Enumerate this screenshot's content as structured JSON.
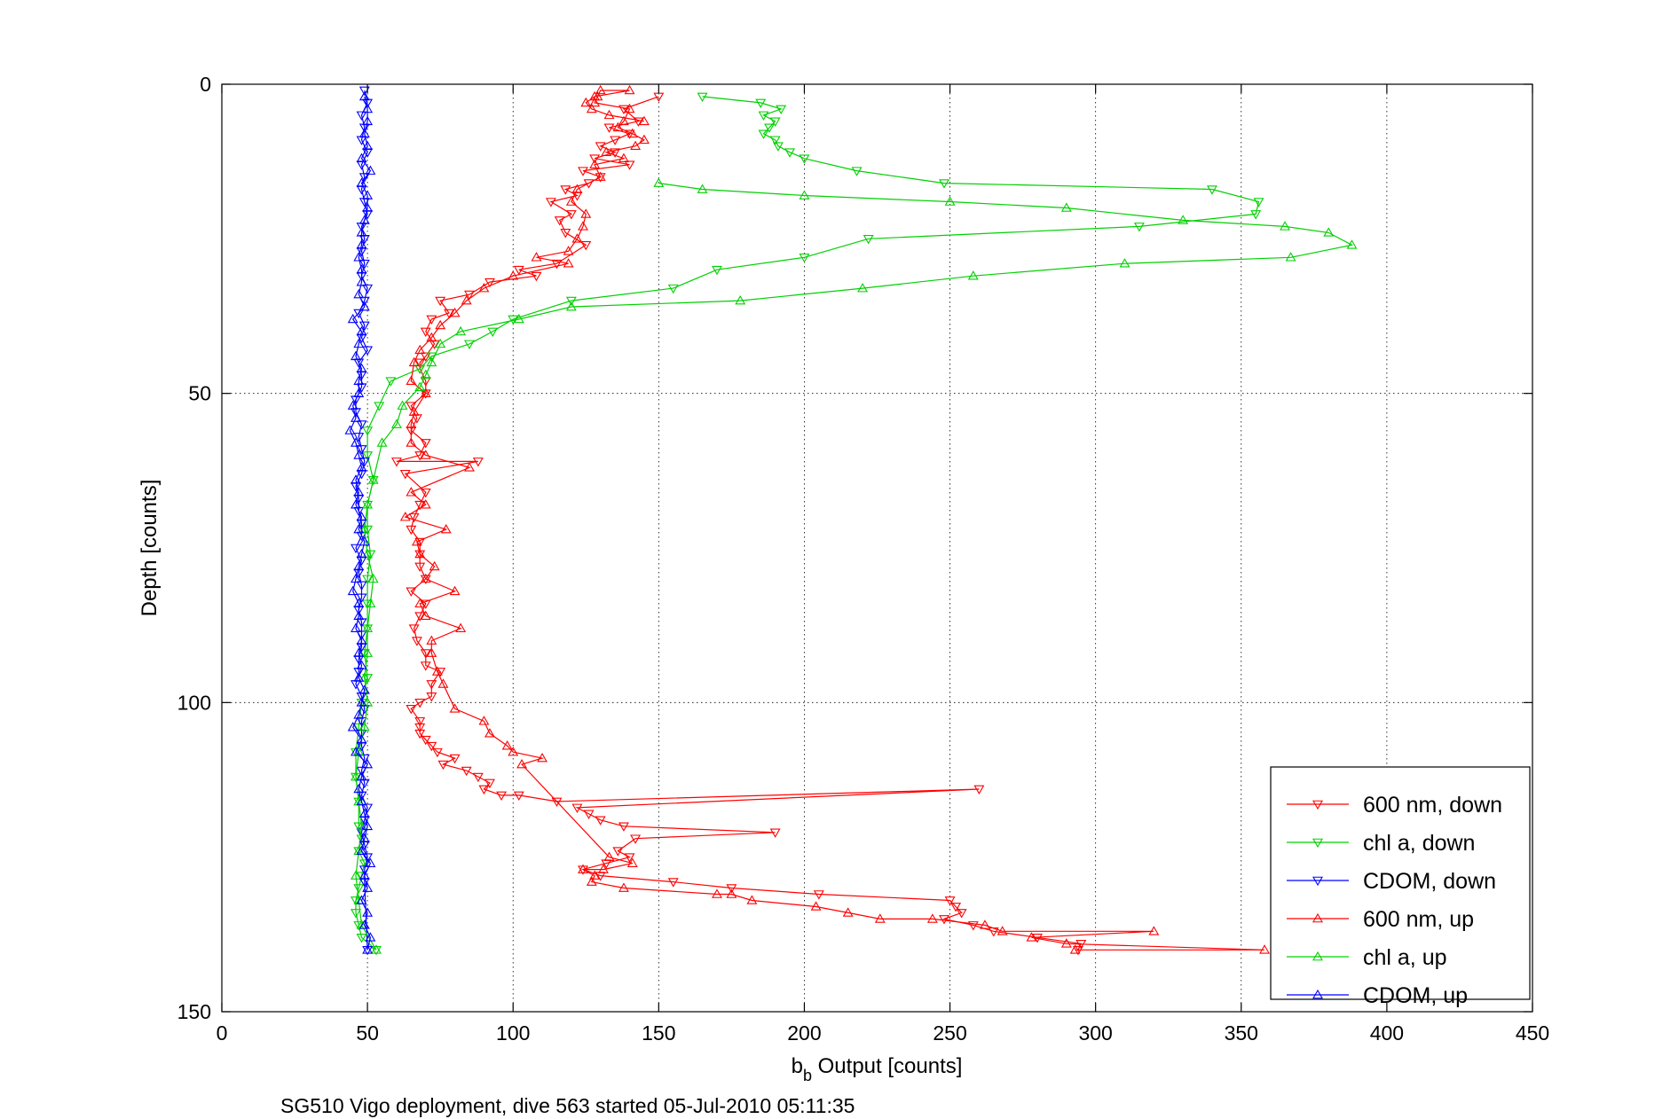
{
  "chart_data": {
    "type": "line",
    "title": "",
    "xlabel": {
      "main": "b",
      "sub": "b",
      "rest": " Output [counts]"
    },
    "ylabel": "Depth [counts]",
    "caption": "SG510 Vigo deployment, dive 563 started 05-Jul-2010 05:11:35",
    "xlim": [
      0,
      450
    ],
    "ylim": [
      0,
      150
    ],
    "y_reversed": true,
    "grid": true,
    "legend_position": "bottom-right",
    "xticks": [
      0,
      50,
      100,
      150,
      200,
      250,
      300,
      350,
      400,
      450
    ],
    "yticks": [
      0,
      50,
      100,
      150
    ],
    "xtick_labels": [
      "0",
      "50",
      "100",
      "150",
      "200",
      "250",
      "300",
      "350",
      "400",
      "450"
    ],
    "ytick_labels": [
      "0",
      "50",
      "100",
      "150"
    ],
    "series": [
      {
        "name": "600 nm, down",
        "color": "#ff0000",
        "marker": "triangle-down",
        "x": [
          150,
          138,
          143,
          133,
          140,
          135,
          130,
          135,
          128,
          140,
          124,
          130,
          126,
          118,
          122,
          113,
          120,
          116,
          118,
          125,
          115,
          102,
          108,
          92,
          85,
          75,
          78,
          72,
          70,
          73,
          70,
          68,
          68,
          70,
          70,
          65,
          67,
          65,
          70,
          68,
          60,
          88,
          63,
          70,
          68,
          66,
          65,
          68,
          68,
          68,
          70,
          65,
          70,
          68,
          66,
          67,
          70,
          70,
          75,
          72,
          72,
          68,
          65,
          68,
          68,
          68,
          70,
          72,
          74,
          80,
          76,
          84,
          88,
          92,
          90,
          96,
          102,
          115,
          260,
          122,
          126,
          130,
          138,
          190,
          142,
          136,
          140,
          132,
          124,
          130,
          155,
          175,
          205,
          250,
          252,
          254,
          248,
          258,
          265,
          280,
          295,
          294
        ],
        "y": [
          2,
          4,
          6,
          7,
          8,
          9,
          10,
          11,
          12,
          13,
          14,
          15,
          16,
          17,
          18,
          19,
          21,
          22,
          24,
          26,
          29,
          30,
          31,
          32,
          34,
          35,
          37,
          38,
          40,
          42,
          44,
          45,
          46,
          48,
          50,
          52,
          54,
          56,
          58,
          60,
          61,
          61,
          63,
          66,
          68,
          70,
          72,
          74,
          76,
          78,
          80,
          82,
          84,
          86,
          88,
          90,
          92,
          94,
          95,
          97,
          99,
          100,
          101,
          103,
          104,
          105,
          106,
          107,
          108,
          109,
          110,
          111,
          112,
          113,
          114,
          115,
          115,
          116,
          114,
          117,
          118,
          119,
          120,
          121,
          122,
          124,
          125,
          126,
          127,
          128,
          129,
          130,
          131,
          132,
          133,
          134,
          135,
          136,
          137,
          138,
          139,
          140
        ]
      },
      {
        "name": "chl a, down",
        "color": "#00d000",
        "marker": "triangle-down",
        "x": [
          165,
          185,
          192,
          186,
          190,
          188,
          186,
          190,
          191,
          195,
          200,
          218,
          248,
          340,
          356,
          355,
          315,
          222,
          200,
          170,
          155,
          120,
          100,
          93,
          85,
          72,
          68,
          58,
          54,
          50,
          50,
          52,
          50,
          50,
          51,
          50,
          50,
          50,
          49,
          50,
          48,
          47,
          46,
          46,
          47,
          47,
          48,
          47,
          49,
          48,
          47,
          46,
          46,
          47,
          48,
          53
        ],
        "y": [
          2,
          3,
          4,
          5,
          6,
          7,
          8,
          9,
          10,
          11,
          12,
          14,
          16,
          17,
          19,
          21,
          23,
          25,
          28,
          30,
          33,
          35,
          38,
          40,
          42,
          44,
          46,
          48,
          52,
          56,
          60,
          64,
          68,
          72,
          76,
          80,
          84,
          88,
          92,
          96,
          100,
          104,
          108,
          112,
          116,
          120,
          122,
          124,
          126,
          128,
          130,
          132,
          134,
          136,
          138,
          140
        ]
      },
      {
        "name": "CDOM, down",
        "color": "#0000ff",
        "marker": "triangle-down",
        "x": [
          49,
          50,
          48,
          49,
          48,
          50,
          48,
          49,
          48,
          49,
          50,
          48,
          49,
          48,
          49,
          48,
          50,
          49,
          47,
          49,
          48,
          50,
          47,
          48,
          48,
          46,
          46,
          48,
          47,
          48,
          49,
          48,
          46,
          47,
          47,
          48,
          48,
          46,
          48,
          47,
          48,
          48,
          47,
          48,
          48,
          48,
          47,
          47,
          46,
          48,
          49,
          48,
          48,
          48,
          49,
          48,
          49,
          48,
          50,
          49,
          48,
          49,
          50,
          49,
          49,
          50
        ],
        "y": [
          1,
          3,
          5,
          7,
          9,
          11,
          13,
          15,
          17,
          19,
          21,
          23,
          25,
          27,
          29,
          31,
          33,
          35,
          37,
          39,
          41,
          43,
          45,
          47,
          49,
          51,
          53,
          55,
          57,
          59,
          61,
          63,
          65,
          67,
          69,
          71,
          73,
          75,
          77,
          79,
          81,
          83,
          85,
          87,
          89,
          91,
          93,
          95,
          97,
          99,
          101,
          103,
          105,
          107,
          109,
          111,
          113,
          115,
          117,
          119,
          121,
          123,
          125,
          127,
          129,
          140
        ]
      },
      {
        "name": "600 nm, up",
        "color": "#ff0000",
        "marker": "triangle-up",
        "x": [
          293,
          358,
          290,
          278,
          320,
          268,
          262,
          244,
          226,
          215,
          204,
          182,
          175,
          170,
          138,
          127,
          128,
          124,
          131,
          141,
          133,
          103,
          110,
          100,
          98,
          92,
          90,
          80,
          76,
          74,
          72,
          72,
          82,
          70,
          68,
          80,
          70,
          73,
          68,
          67,
          77,
          63,
          70,
          65,
          85,
          70,
          65,
          65,
          66,
          70,
          65,
          66,
          68,
          72,
          75,
          80,
          84,
          90,
          100,
          119,
          108,
          119,
          122,
          124,
          125,
          120,
          122,
          130,
          128,
          138,
          132,
          142,
          145,
          141,
          136,
          138,
          140,
          128,
          129,
          130,
          140,
          128,
          125,
          127,
          133,
          145
        ],
        "y": [
          140,
          140,
          139,
          138,
          137,
          137,
          136,
          135,
          135,
          134,
          133,
          132,
          131,
          131,
          130,
          129,
          128,
          127,
          127,
          126,
          125,
          110,
          109,
          108,
          107,
          105,
          103,
          101,
          97,
          95,
          92,
          90,
          88,
          86,
          84,
          82,
          80,
          78,
          76,
          74,
          72,
          70,
          68,
          66,
          62,
          60,
          58,
          55,
          53,
          50,
          48,
          45,
          43,
          41,
          39,
          37,
          35,
          33,
          31,
          29,
          28,
          27,
          25,
          23,
          21,
          19,
          17,
          15,
          13,
          12,
          11,
          10,
          9,
          8,
          7,
          6,
          4,
          3,
          2,
          1,
          1,
          2,
          3,
          4,
          5,
          6
        ]
      },
      {
        "name": "chl a, up",
        "color": "#00d000",
        "marker": "triangle-up",
        "x": [
          53,
          48,
          47,
          46,
          47,
          48,
          47,
          46,
          47,
          49,
          50,
          49,
          50,
          50,
          51,
          52,
          50,
          49,
          50,
          52,
          55,
          60,
          62,
          68,
          70,
          72,
          75,
          82,
          102,
          120,
          178,
          220,
          258,
          310,
          367,
          388,
          380,
          365,
          330,
          290,
          250,
          200,
          165,
          150
        ],
        "y": [
          140,
          136,
          132,
          128,
          124,
          120,
          116,
          112,
          108,
          104,
          100,
          96,
          92,
          88,
          84,
          80,
          76,
          72,
          68,
          64,
          58,
          55,
          52,
          49,
          47,
          45,
          42,
          40,
          38,
          36,
          35,
          33,
          31,
          29,
          28,
          26,
          24,
          23,
          22,
          20,
          19,
          18,
          17,
          16
        ]
      },
      {
        "name": "CDOM, up",
        "color": "#0000ff",
        "marker": "triangle-up",
        "x": [
          50,
          51,
          49,
          50,
          48,
          50,
          49,
          51,
          48,
          49,
          50,
          49,
          48,
          47,
          48,
          50,
          46,
          48,
          45,
          47,
          48,
          49,
          47,
          48,
          47,
          48,
          46,
          47,
          47,
          45,
          46,
          47,
          48,
          49,
          47,
          48,
          46,
          47,
          46,
          48,
          47,
          46,
          44,
          46,
          45,
          47,
          47,
          48,
          46,
          47,
          48,
          45,
          49,
          47,
          48,
          48,
          47,
          48,
          48,
          49,
          50,
          50,
          48,
          51,
          48,
          50,
          49,
          50,
          50,
          49
        ],
        "y": [
          140,
          138,
          136,
          134,
          132,
          130,
          128,
          126,
          124,
          122,
          120,
          118,
          116,
          114,
          112,
          110,
          108,
          106,
          104,
          102,
          100,
          98,
          96,
          94,
          92,
          90,
          88,
          86,
          84,
          82,
          80,
          78,
          76,
          74,
          72,
          70,
          68,
          66,
          64,
          62,
          60,
          58,
          56,
          54,
          52,
          50,
          48,
          46,
          44,
          42,
          40,
          38,
          36,
          34,
          32,
          30,
          28,
          26,
          24,
          22,
          20,
          18,
          16,
          14,
          12,
          10,
          8,
          6,
          4,
          2
        ]
      }
    ]
  }
}
